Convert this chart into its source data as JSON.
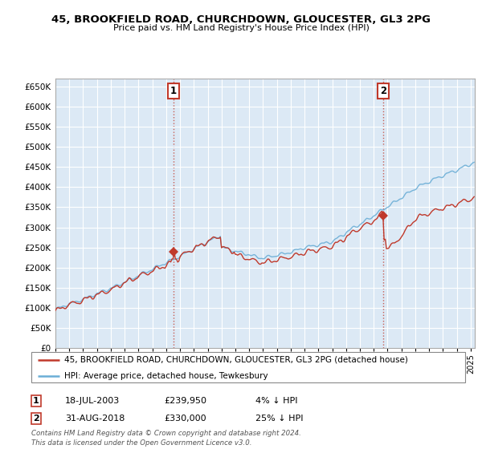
{
  "title1": "45, BROOKFIELD ROAD, CHURCHDOWN, GLOUCESTER, GL3 2PG",
  "title2": "Price paid vs. HM Land Registry's House Price Index (HPI)",
  "ytick_values": [
    0,
    50000,
    100000,
    150000,
    200000,
    250000,
    300000,
    350000,
    400000,
    450000,
    500000,
    550000,
    600000,
    650000
  ],
  "plot_bg_color": "#dce9f5",
  "hpi_color": "#6baed6",
  "price_color": "#c0392b",
  "annotation_line_color": "#c0392b",
  "legend_entry1": "45, BROOKFIELD ROAD, CHURCHDOWN, GLOUCESTER, GL3 2PG (detached house)",
  "legend_entry2": "HPI: Average price, detached house, Tewkesbury",
  "ann1_label": "1",
  "ann1_date": "18-JUL-2003",
  "ann1_price": "£239,950",
  "ann1_pct": "4% ↓ HPI",
  "ann2_label": "2",
  "ann2_date": "31-AUG-2018",
  "ann2_price": "£330,000",
  "ann2_pct": "25% ↓ HPI",
  "ann1_y_val": 239950,
  "ann2_y_val": 330000,
  "footer": "Contains HM Land Registry data © Crown copyright and database right 2024.\nThis data is licensed under the Open Government Licence v3.0.",
  "xlim_start": 1995.0,
  "xlim_end": 2025.3,
  "ylim_top": 670000
}
